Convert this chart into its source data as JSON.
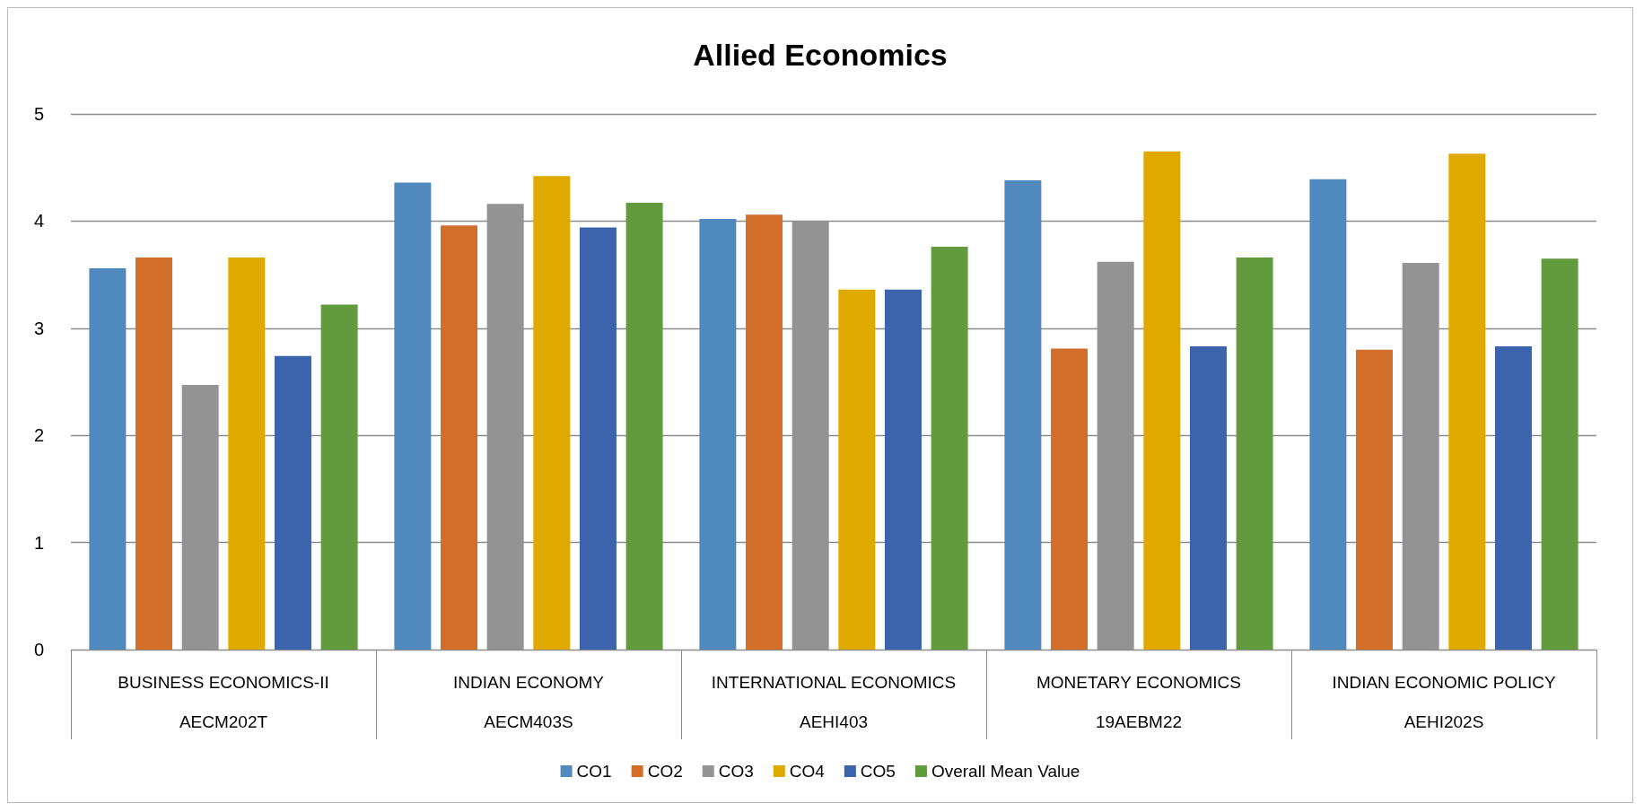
{
  "chart_data": {
    "type": "bar",
    "title": "Allied Economics",
    "categories": [
      "BUSINESS ECONOMICS-II\nAECM202T",
      "INDIAN ECONOMY\nAECM403S",
      "INTERNATIONAL ECONOMICS\nAEHI403",
      "MONETARY ECONOMICS\n19AEBM22",
      "INDIAN ECONOMIC POLICY\nAEHI202S"
    ],
    "series": [
      {
        "name": "CO1",
        "color": "#4f89bd",
        "values": [
          3.56,
          4.36,
          4.02,
          4.38,
          4.39
        ]
      },
      {
        "name": "CO2",
        "color": "#d36d2a",
        "values": [
          3.66,
          3.96,
          4.06,
          2.81,
          2.8
        ]
      },
      {
        "name": "CO3",
        "color": "#939393",
        "values": [
          2.47,
          4.16,
          4.0,
          3.62,
          3.61
        ]
      },
      {
        "name": "CO4",
        "color": "#e0a900",
        "values": [
          3.66,
          4.42,
          3.36,
          4.65,
          4.63
        ]
      },
      {
        "name": "CO5",
        "color": "#3c64ad",
        "values": [
          2.74,
          3.94,
          3.36,
          2.83,
          2.83
        ]
      },
      {
        "name": "Overall Mean Value",
        "color": "#629a3e",
        "values": [
          3.22,
          4.17,
          3.76,
          3.66,
          3.65
        ]
      }
    ],
    "ylim": [
      0,
      5
    ],
    "yticks": [
      0,
      1,
      2,
      3,
      4,
      5
    ],
    "grid": "y",
    "legend": "bottom"
  }
}
